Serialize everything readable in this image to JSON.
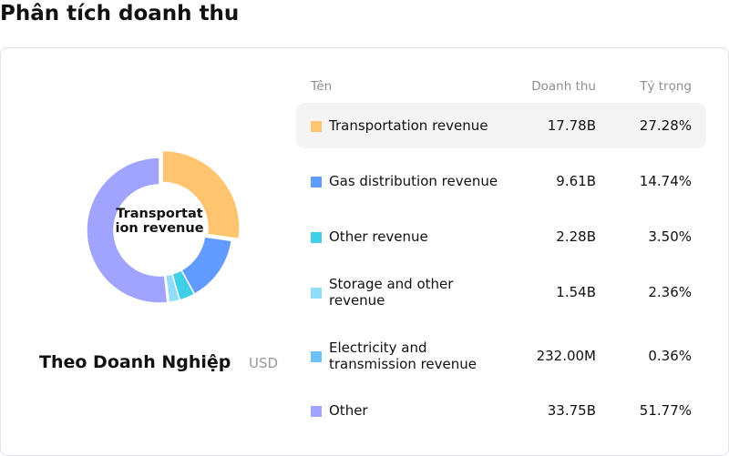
{
  "page_title": "Phân tích doanh thu",
  "card": {
    "subtitle": "Theo Doanh Nghiệp",
    "unit": "USD",
    "center_label": "Transportation revenue"
  },
  "table": {
    "headers": {
      "name": "Tên",
      "revenue": "Doanh thu",
      "share": "Tỷ trọng"
    }
  },
  "chart_data": {
    "type": "pie",
    "variant": "donut",
    "legend": "table-right",
    "highlighted": "Transportation revenue",
    "slices": [
      {
        "name": "Transportation revenue",
        "value_label": "17.78B",
        "percent": 27.28,
        "percent_label": "27.28%",
        "color": "#FFC470"
      },
      {
        "name": "Gas distribution revenue",
        "value_label": "9.61B",
        "percent": 14.74,
        "percent_label": "14.74%",
        "color": "#619BFF"
      },
      {
        "name": "Other revenue",
        "value_label": "2.28B",
        "percent": 3.5,
        "percent_label": "3.50%",
        "color": "#40CFE6"
      },
      {
        "name": "Storage and other revenue",
        "value_label": "1.54B",
        "percent": 2.36,
        "percent_label": "2.36%",
        "color": "#90DCFA"
      },
      {
        "name": "Electricity and transmission revenue",
        "value_label": "232.00M",
        "percent": 0.36,
        "percent_label": "0.36%",
        "color": "#6CC0F8"
      },
      {
        "name": "Other",
        "value_label": "33.75B",
        "percent": 51.77,
        "percent_label": "51.77%",
        "color": "#A0A4FF"
      }
    ]
  }
}
